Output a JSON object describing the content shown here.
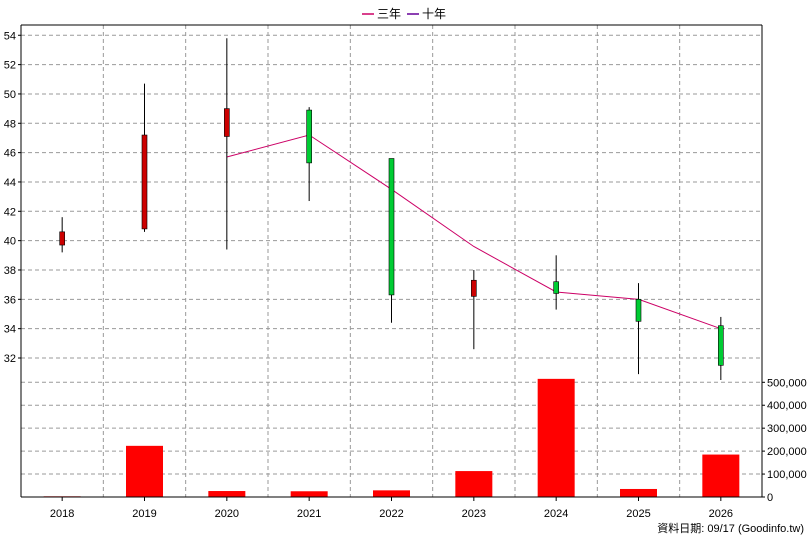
{
  "chart_data": {
    "type": "candlestick",
    "legend": {
      "placement": "top-center",
      "items": [
        {
          "name": "三年",
          "color": "#cc0066"
        },
        {
          "name": "十年",
          "color": "#660099"
        }
      ]
    },
    "x": [
      "2018",
      "2019",
      "2020",
      "2021",
      "2022",
      "2023",
      "2024",
      "2025",
      "2026"
    ],
    "price": {
      "ylim": [
        30.5,
        54.7
      ],
      "ticks": [
        32,
        34,
        36,
        38,
        40,
        42,
        44,
        46,
        48,
        50,
        52,
        54
      ],
      "candles": [
        {
          "x": "2018",
          "open": 40.6,
          "high": 41.6,
          "low": 39.2,
          "close": 39.7
        },
        {
          "x": "2019",
          "open": 47.2,
          "high": 50.7,
          "low": 40.6,
          "close": 40.8
        },
        {
          "x": "2020",
          "open": 49.0,
          "high": 53.8,
          "low": 39.4,
          "close": 47.1
        },
        {
          "x": "2021",
          "open": 45.3,
          "high": 49.1,
          "low": 42.7,
          "close": 48.9
        },
        {
          "x": "2022",
          "open": 36.3,
          "high": 45.6,
          "low": 34.4,
          "close": 45.6
        },
        {
          "x": "2023",
          "open": 37.3,
          "high": 38.0,
          "low": 32.6,
          "close": 36.2
        },
        {
          "x": "2024",
          "open": 36.4,
          "high": 39.0,
          "low": 35.3,
          "close": 37.2
        },
        {
          "x": "2025",
          "open": 34.5,
          "high": 37.1,
          "low": 30.9,
          "close": 36.0
        },
        {
          "x": "2026",
          "open": 31.5,
          "high": 34.8,
          "low": 30.5,
          "close": 34.2
        }
      ],
      "series": [
        {
          "name": "三年",
          "color": "#cc0066",
          "x": [
            "2020",
            "2021",
            "2022",
            "2023",
            "2024",
            "2025",
            "2026"
          ],
          "values": [
            45.7,
            47.2,
            43.5,
            39.6,
            36.5,
            36.0,
            34.0
          ]
        }
      ]
    },
    "volume": {
      "ylim": [
        0,
        510000
      ],
      "tick_labels": [
        "500,000",
        "400,000",
        "300,000",
        "200,000",
        "100,000",
        "0"
      ],
      "tick_values": [
        500000,
        400000,
        300000,
        200000,
        100000,
        0
      ],
      "values": [
        3000,
        223000,
        26000,
        25000,
        29000,
        113000,
        515000,
        35000,
        185000
      ],
      "color": "#ff0000"
    },
    "candle_colors": {
      "up": "#00cc33",
      "down": "#cc0000"
    },
    "grid": true
  },
  "footer": {
    "note": "資料日期: 09/17  (Goodinfo.tw)"
  }
}
